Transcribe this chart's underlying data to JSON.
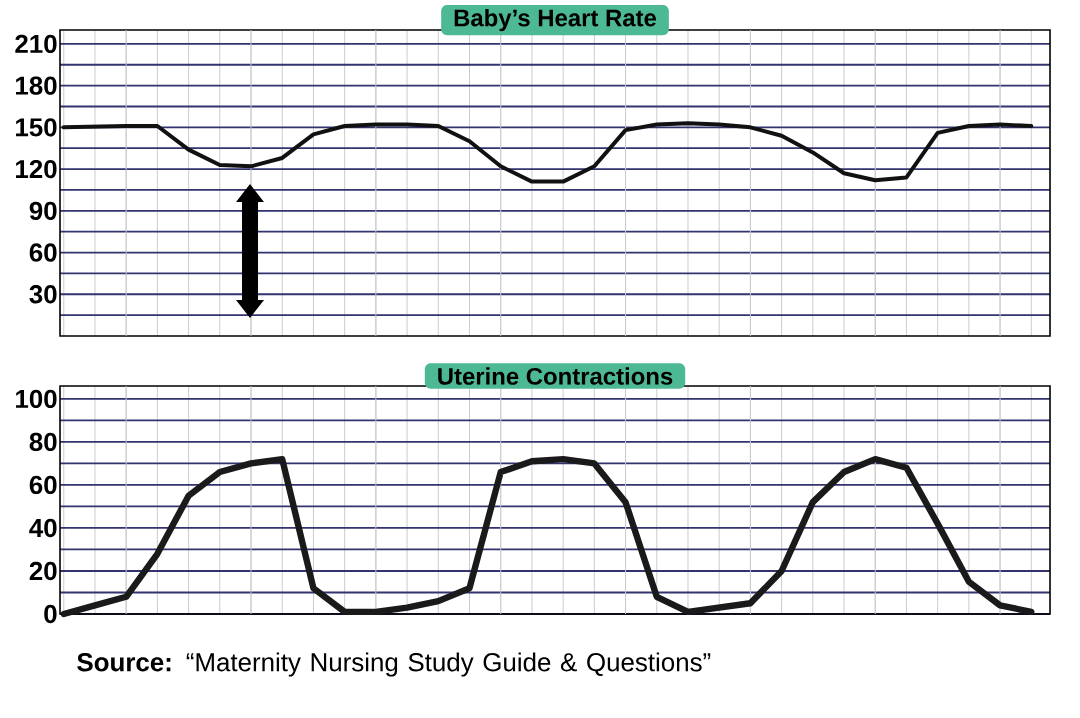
{
  "chart_data": [
    {
      "type": "line",
      "title": "Baby’s Heart Rate",
      "categories": [
        null,
        null,
        null,
        null,
        null,
        null,
        null,
        null,
        null,
        null,
        null,
        null,
        null,
        null,
        null,
        null,
        null,
        null,
        null,
        null,
        null,
        null,
        null,
        null,
        null,
        null,
        null,
        null,
        null,
        null,
        null,
        null
      ],
      "series": [
        {
          "color": "#111111",
          "values": [
            150,
            150.5,
            151,
            151,
            134,
            123,
            122,
            128,
            145,
            151,
            152,
            152,
            151,
            140,
            122,
            111,
            111,
            122,
            148,
            152,
            153,
            152,
            150,
            144,
            132,
            117,
            112,
            114,
            146,
            151,
            152,
            151
          ]
        }
      ],
      "ylim": [
        0,
        220
      ],
      "yticks": [
        {
          "value": 15,
          "label": null
        },
        30,
        {
          "value": 45,
          "label": null
        },
        60,
        {
          "value": 75,
          "label": null
        },
        90,
        {
          "value": 105,
          "label": null
        },
        120,
        {
          "value": 135,
          "label": null
        },
        150,
        {
          "value": 165,
          "label": null
        },
        180,
        {
          "value": 195,
          "label": null
        },
        210
      ],
      "tick_labels": "y",
      "grid": true,
      "marker": "none",
      "line_style": "solid"
    },
    {
      "type": "line",
      "title": "Uterine Contractions",
      "categories": [
        null,
        null,
        null,
        null,
        null,
        null,
        null,
        null,
        null,
        null,
        null,
        null,
        null,
        null,
        null,
        null,
        null,
        null,
        null,
        null,
        null,
        null,
        null,
        null,
        null,
        null,
        null,
        null,
        null,
        null,
        null,
        null
      ],
      "series": [
        {
          "color": "#1a1a1a",
          "values": [
            0,
            4,
            8,
            28,
            55,
            66,
            70,
            72,
            12,
            1,
            1,
            3,
            6,
            12,
            66,
            71,
            72,
            70,
            52,
            8,
            1,
            3,
            5,
            20,
            52,
            66,
            72,
            68,
            42,
            15,
            4,
            1
          ]
        }
      ],
      "ylim": [
        0,
        106
      ],
      "yticks": [
        0,
        {
          "value": 10,
          "label": null
        },
        20,
        {
          "value": 30,
          "label": null
        },
        40,
        {
          "value": 50,
          "label": null
        },
        60,
        {
          "value": 70,
          "label": null
        },
        80,
        {
          "value": 90,
          "label": null
        },
        100
      ],
      "tick_labels": "y",
      "grid": true,
      "marker": "none",
      "line_style": "solid",
      "annotations": [
        "**Source:** “Maternity Nursing Study Guide & Questions”"
      ]
    }
  ]
}
